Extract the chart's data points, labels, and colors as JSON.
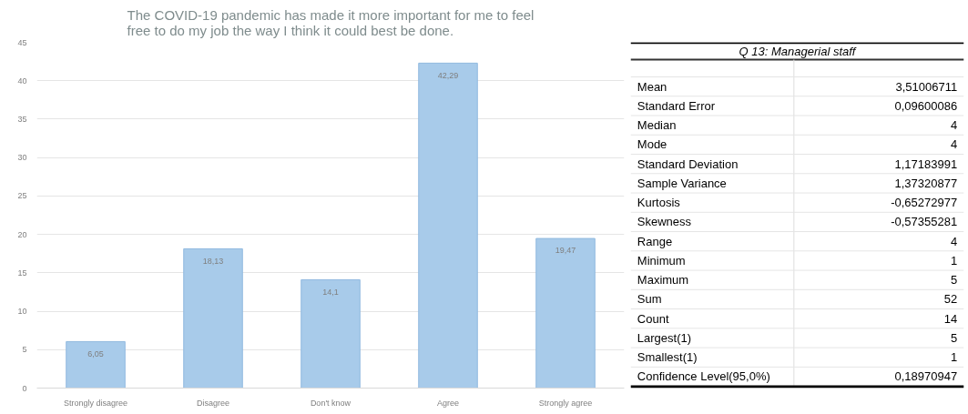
{
  "chart_data": [
    {
      "type": "bar",
      "title": "The COVID-19 pandemic has made it more important for me to feel\nfree to do my job the way I think it could best be done.",
      "categories": [
        "Strongly disagree",
        "Disagree",
        "Don't know",
        "Agree",
        "Strongly agree"
      ],
      "values": [
        6.05,
        18.13,
        14.1,
        42.29,
        19.47
      ],
      "value_labels": [
        "6,05",
        "18,13",
        "14,1",
        "42,29",
        "19,47"
      ],
      "color": "#a8cbea",
      "ylim": [
        0,
        45
      ],
      "yticks": [
        0,
        5,
        10,
        15,
        20,
        25,
        30,
        35,
        40,
        45
      ],
      "grid": "y"
    },
    {
      "type": "other",
      "title": "Q 13: Managerial staff",
      "annotations": [
        "Mean",
        "3,51006711",
        "Standard Error",
        "0,09600086",
        "Median",
        "4",
        "Mode",
        "4",
        "Standard Deviation",
        "1,17183991",
        "Sample Variance",
        "1,37320877",
        "Kurtosis",
        "-0,65272977",
        "Skewness",
        "-0,57355281",
        "Range",
        "4",
        "Minimum",
        "1",
        "Maximum",
        "5",
        "Sum",
        "52",
        "Count",
        "14",
        "Largest(1)",
        "5",
        "Smallest(1)",
        "1",
        "Confidence Level(95,0%)",
        "0,18970947"
      ]
    }
  ]
}
